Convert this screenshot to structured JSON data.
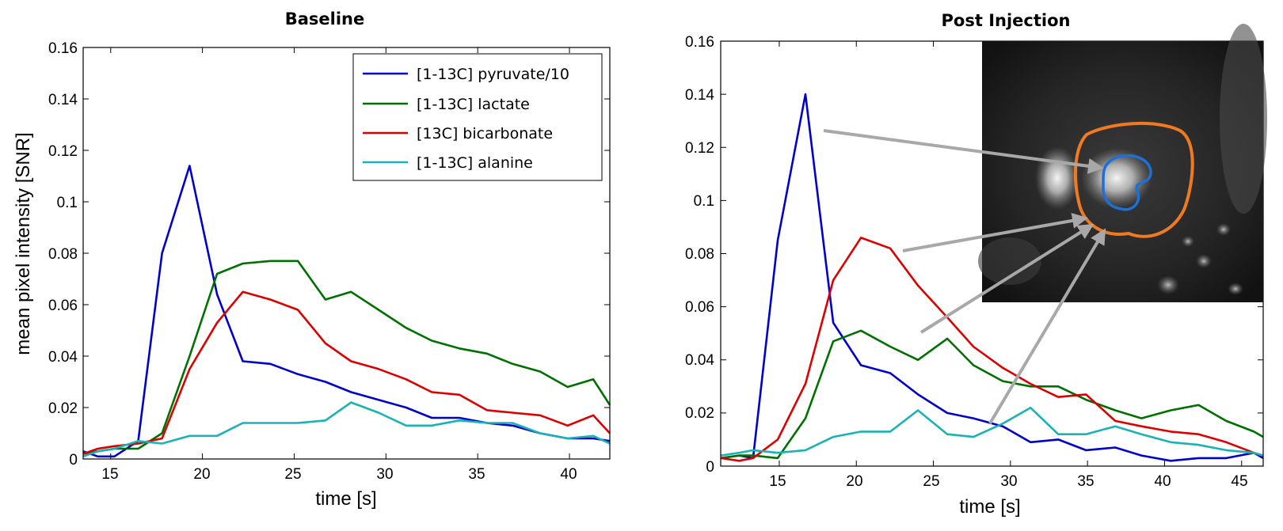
{
  "chart_data": [
    {
      "type": "line",
      "title": "Baseline",
      "xlabel": "time [s]",
      "ylabel": "mean pixel intensity [SNR]",
      "xlim": [
        13.5,
        42.2
      ],
      "ylim": [
        0,
        0.16
      ],
      "xticks": [
        15,
        20,
        25,
        30,
        35,
        40
      ],
      "xtick_labels": [
        "15",
        "20",
        "25",
        "30",
        "35",
        "40"
      ],
      "yticks": [
        0,
        0.02,
        0.04,
        0.06,
        0.08,
        0.1,
        0.12,
        0.14,
        0.16
      ],
      "ytick_labels": [
        "0",
        "0.02",
        "0.04",
        "0.06",
        "0.08",
        "0.1",
        "0.12",
        "0.14",
        "0.16"
      ],
      "legend_position": "top-right",
      "series": [
        {
          "name": "[1-13C] pyruvate/10",
          "color": "#0000cc",
          "x": [
            13.5,
            14.3,
            15.2,
            16.5,
            17.8,
            19.3,
            20.8,
            22.2,
            23.7,
            25.2,
            26.7,
            28.1,
            29.6,
            31.1,
            32.5,
            34.0,
            35.5,
            36.9,
            38.4,
            39.9,
            41.3,
            42.2
          ],
          "y": [
            0.003,
            0.001,
            0.001,
            0.007,
            0.08,
            0.114,
            0.064,
            0.038,
            0.037,
            0.033,
            0.03,
            0.026,
            0.023,
            0.02,
            0.016,
            0.016,
            0.014,
            0.013,
            0.01,
            0.008,
            0.008,
            0.007
          ]
        },
        {
          "name": "[1-13C] lactate",
          "color": "#007000",
          "x": [
            13.5,
            14.3,
            15.2,
            16.5,
            17.8,
            19.3,
            20.8,
            22.2,
            23.7,
            25.2,
            26.7,
            28.1,
            29.6,
            31.1,
            32.5,
            34.0,
            35.5,
            36.9,
            38.4,
            39.9,
            41.3,
            42.2
          ],
          "y": [
            0.002,
            0.003,
            0.004,
            0.004,
            0.01,
            0.04,
            0.072,
            0.076,
            0.077,
            0.077,
            0.062,
            0.065,
            0.058,
            0.051,
            0.046,
            0.043,
            0.041,
            0.037,
            0.034,
            0.028,
            0.031,
            0.021
          ]
        },
        {
          "name": "[13C] bicarbonate",
          "color": "#dd0000",
          "x": [
            13.5,
            14.3,
            15.2,
            16.5,
            17.8,
            19.3,
            20.8,
            22.2,
            23.7,
            25.2,
            26.7,
            28.1,
            29.6,
            31.1,
            32.5,
            34.0,
            35.5,
            36.9,
            38.4,
            39.9,
            41.3,
            42.2
          ],
          "y": [
            0.002,
            0.004,
            0.005,
            0.006,
            0.008,
            0.035,
            0.053,
            0.065,
            0.062,
            0.058,
            0.045,
            0.038,
            0.035,
            0.031,
            0.026,
            0.025,
            0.019,
            0.018,
            0.017,
            0.013,
            0.017,
            0.01
          ]
        },
        {
          "name": "[1-13C] alanine",
          "color": "#1ab3b3",
          "x": [
            13.5,
            14.3,
            15.2,
            16.5,
            17.8,
            19.3,
            20.8,
            22.2,
            23.7,
            25.2,
            26.7,
            28.1,
            29.6,
            31.1,
            32.5,
            34.0,
            35.5,
            36.9,
            38.4,
            39.9,
            41.3,
            42.2
          ],
          "y": [
            0.001,
            0.003,
            0.004,
            0.007,
            0.006,
            0.009,
            0.009,
            0.014,
            0.014,
            0.014,
            0.015,
            0.022,
            0.018,
            0.013,
            0.013,
            0.015,
            0.014,
            0.014,
            0.01,
            0.008,
            0.009,
            0.006
          ]
        }
      ]
    },
    {
      "type": "line",
      "title": "Post Injection",
      "xlabel": "time [s]",
      "ylabel": "",
      "xlim": [
        11.2,
        46.4
      ],
      "ylim": [
        0,
        0.16
      ],
      "xticks": [
        15,
        20,
        25,
        30,
        35,
        40,
        45
      ],
      "xtick_labels": [
        "15",
        "20",
        "25",
        "30",
        "35",
        "40",
        "45"
      ],
      "yticks": [
        0,
        0.02,
        0.04,
        0.06,
        0.08,
        0.1,
        0.12,
        0.14,
        0.16
      ],
      "ytick_labels": [
        "0",
        "0.02",
        "0.04",
        "0.06",
        "0.08",
        "0.1",
        "0.12",
        "0.14",
        "0.16"
      ],
      "inset": {
        "kind": "grayscale MRI slice with orange and blue ROI outlines and four grey arrows"
      },
      "series": [
        {
          "name": "[1-13C] pyruvate/10",
          "color": "#0000cc",
          "x": [
            11.2,
            12.4,
            13.3,
            14.9,
            16.7,
            18.5,
            20.3,
            22.2,
            24.0,
            25.9,
            27.6,
            29.5,
            31.3,
            33.1,
            34.9,
            36.8,
            38.5,
            40.4,
            42.2,
            44.0,
            45.8,
            46.4
          ],
          "y": [
            0.003,
            0.004,
            0.003,
            0.085,
            0.14,
            0.054,
            0.038,
            0.035,
            0.027,
            0.02,
            0.018,
            0.015,
            0.009,
            0.01,
            0.006,
            0.007,
            0.004,
            0.002,
            0.003,
            0.003,
            0.005,
            0.003
          ]
        },
        {
          "name": "[1-13C] lactate",
          "color": "#007000",
          "x": [
            11.2,
            12.4,
            13.3,
            14.9,
            16.7,
            18.5,
            20.3,
            22.2,
            24.0,
            25.9,
            27.6,
            29.5,
            31.3,
            33.1,
            34.9,
            36.8,
            38.5,
            40.4,
            42.2,
            44.0,
            45.8,
            46.4
          ],
          "y": [
            0.003,
            0.004,
            0.004,
            0.003,
            0.018,
            0.047,
            0.051,
            0.045,
            0.04,
            0.048,
            0.038,
            0.032,
            0.03,
            0.03,
            0.025,
            0.021,
            0.018,
            0.021,
            0.023,
            0.017,
            0.013,
            0.011
          ]
        },
        {
          "name": "[13C] bicarbonate",
          "color": "#dd0000",
          "x": [
            11.2,
            12.4,
            13.3,
            14.9,
            16.7,
            18.5,
            20.3,
            22.2,
            24.0,
            25.9,
            27.6,
            29.5,
            31.3,
            33.1,
            34.9,
            36.8,
            38.5,
            40.4,
            42.2,
            44.0,
            45.8,
            46.4
          ],
          "y": [
            0.003,
            0.002,
            0.003,
            0.01,
            0.031,
            0.07,
            0.086,
            0.082,
            0.068,
            0.056,
            0.045,
            0.037,
            0.031,
            0.026,
            0.027,
            0.017,
            0.015,
            0.013,
            0.012,
            0.009,
            0.005,
            0.004
          ]
        },
        {
          "name": "[1-13C] alanine",
          "color": "#1ab3b3",
          "x": [
            11.2,
            12.4,
            13.3,
            14.9,
            16.7,
            18.5,
            20.3,
            22.2,
            24.0,
            25.9,
            27.6,
            29.5,
            31.3,
            33.1,
            34.9,
            36.8,
            38.5,
            40.4,
            42.2,
            44.0,
            45.8,
            46.4
          ],
          "y": [
            0.004,
            0.005,
            0.006,
            0.005,
            0.006,
            0.011,
            0.013,
            0.013,
            0.021,
            0.012,
            0.011,
            0.016,
            0.022,
            0.012,
            0.012,
            0.015,
            0.012,
            0.009,
            0.008,
            0.006,
            0.005,
            0.004
          ]
        }
      ]
    }
  ]
}
